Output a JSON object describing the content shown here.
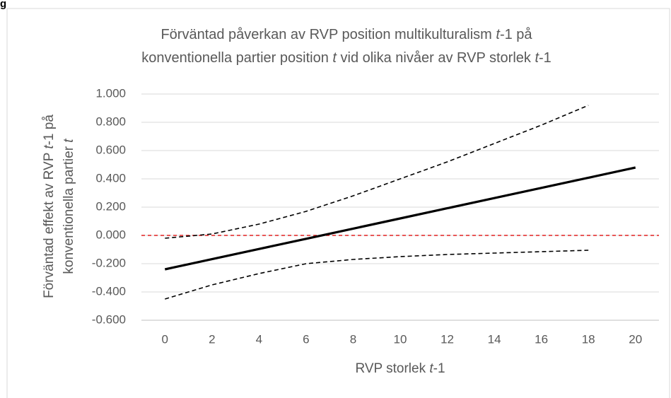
{
  "chart_data": {
    "type": "line",
    "corner_text": "g",
    "title_lines": [
      [
        "Förväntad påverkan av RVP position multikulturalism ",
        "t",
        "-1 på"
      ],
      [
        "konventionella partier position ",
        "t",
        " vid olika nivåer av RVP storlek ",
        "t",
        "-1"
      ]
    ],
    "ylabel_lines": [
      [
        "Förväntad effekt av RVP ",
        "t",
        "-1 på"
      ],
      [
        "konventionella partier ",
        "t"
      ]
    ],
    "xlabel": [
      "RVP storlek ",
      "t",
      "-1"
    ],
    "x": [
      0,
      2,
      4,
      6,
      8,
      10,
      12,
      14,
      16,
      18,
      20
    ],
    "series": [
      {
        "color": "#000000",
        "dash": false,
        "values": [
          -0.24,
          -0.168,
          -0.096,
          -0.024,
          0.048,
          0.12,
          0.192,
          0.264,
          0.336,
          0.408,
          0.48
        ]
      },
      {
        "color": "#000000",
        "dash": true,
        "values": [
          -0.02,
          0.01,
          0.08,
          0.17,
          0.28,
          0.4,
          0.52,
          0.65,
          0.78,
          0.92,
          null
        ]
      },
      {
        "color": "#000000",
        "dash": true,
        "values": [
          -0.45,
          -0.35,
          -0.27,
          -0.2,
          -0.17,
          -0.15,
          -0.135,
          -0.125,
          -0.115,
          -0.105,
          null
        ]
      }
    ],
    "reference_line": {
      "value": 0,
      "color": "#e02020"
    },
    "xlim": [
      -1,
      21
    ],
    "xticks": [
      0,
      2,
      4,
      6,
      8,
      10,
      12,
      14,
      16,
      18,
      20
    ],
    "ylim": [
      -0.6,
      1.0
    ],
    "yticks": [
      {
        "value": -0.6,
        "label": "-0.600"
      },
      {
        "value": -0.4,
        "label": "-0.400"
      },
      {
        "value": -0.2,
        "label": "-0.200"
      },
      {
        "value": 0,
        "label": "0.000"
      },
      {
        "value": 0.2,
        "label": "0.200"
      },
      {
        "value": 0.4,
        "label": "0.400"
      },
      {
        "value": 0.6,
        "label": "0.600"
      },
      {
        "value": 0.8,
        "label": "0.800"
      },
      {
        "value": 1.0,
        "label": "1.000"
      }
    ],
    "grid": true
  }
}
